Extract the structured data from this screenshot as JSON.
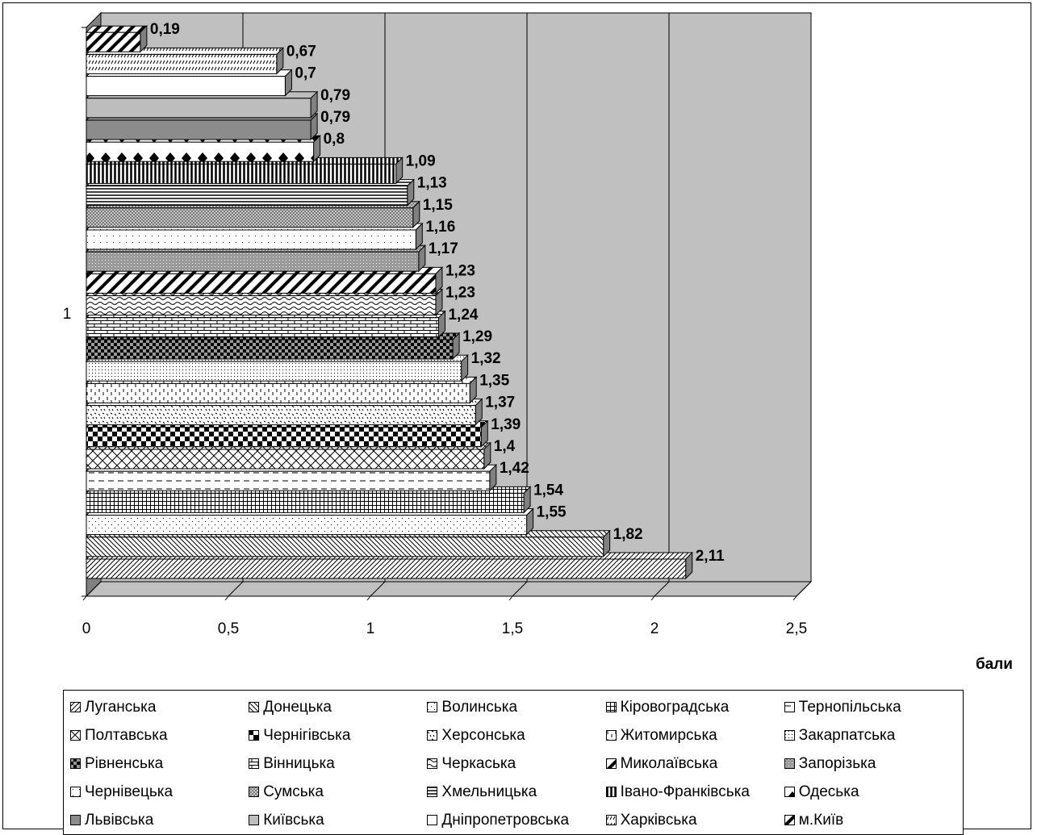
{
  "chart_data": {
    "type": "bar",
    "orientation": "horizontal",
    "category_label": "1",
    "xlabel": "бали",
    "xlim": [
      0,
      2.5
    ],
    "xticks": [
      "0",
      "0,5",
      "1",
      "1,5",
      "2",
      "2,5"
    ],
    "grid": true,
    "legend_position": "bottom",
    "series": [
      {
        "name": "Луганська",
        "value": 2.11,
        "label": "2,11",
        "pattern": "diag-fine"
      },
      {
        "name": "Донецька",
        "value": 1.82,
        "label": "1,82",
        "pattern": "diag-back"
      },
      {
        "name": "Волинська",
        "value": 1.55,
        "label": "1,55",
        "pattern": "dots-sparse"
      },
      {
        "name": "Кіровоградська",
        "value": 1.54,
        "label": "1,54",
        "pattern": "grid-fine"
      },
      {
        "name": "Тернопільська",
        "value": 1.42,
        "label": "1,42",
        "pattern": "dashes"
      },
      {
        "name": "Полтавська",
        "value": 1.4,
        "label": "1,4",
        "pattern": "cross-diag"
      },
      {
        "name": "Чернігівська",
        "value": 1.39,
        "label": "1,39",
        "pattern": "checker"
      },
      {
        "name": "Херсонська",
        "value": 1.37,
        "label": "1,37",
        "pattern": "confetti"
      },
      {
        "name": "Житомирська",
        "value": 1.35,
        "label": "1,35",
        "pattern": "vdash"
      },
      {
        "name": "Закарпатська",
        "value": 1.32,
        "label": "1,32",
        "pattern": "dots-dense"
      },
      {
        "name": "Рівненська",
        "value": 1.29,
        "label": "1,29",
        "pattern": "checker-dark"
      },
      {
        "name": "Вінницька",
        "value": 1.24,
        "label": "1,24",
        "pattern": "brick"
      },
      {
        "name": "Черкаська",
        "value": 1.23,
        "label": "1,23",
        "pattern": "wave"
      },
      {
        "name": "Миколаївська",
        "value": 1.23,
        "label": "1,23",
        "pattern": "diag-wide"
      },
      {
        "name": "Запорізька",
        "value": 1.17,
        "label": "1,17",
        "pattern": "gray-dots"
      },
      {
        "name": "Чернівецька",
        "value": 1.16,
        "label": "1,16",
        "pattern": "dots-light"
      },
      {
        "name": "Сумська",
        "value": 1.15,
        "label": "1,15",
        "pattern": "gray-checker"
      },
      {
        "name": "Хмельницька",
        "value": 1.13,
        "label": "1,13",
        "pattern": "hlines"
      },
      {
        "name": "Івано-Франківська",
        "value": 1.09,
        "label": "1,09",
        "pattern": "vlines"
      },
      {
        "name": "Одеська",
        "value": 0.8,
        "label": "0,8",
        "pattern": "diamonds"
      },
      {
        "name": "Львівська",
        "value": 0.79,
        "label": "0,79",
        "pattern": "solid-gray"
      },
      {
        "name": "Київська",
        "value": 0.79,
        "label": "0,79",
        "pattern": "solid-light"
      },
      {
        "name": "Дніпропетровська",
        "value": 0.7,
        "label": "0,7",
        "pattern": "white"
      },
      {
        "name": "Харківська",
        "value": 0.67,
        "label": "0,67",
        "pattern": "diag-small"
      },
      {
        "name": "м.Київ",
        "value": 0.19,
        "label": "0,19",
        "pattern": "diag-bold"
      }
    ]
  },
  "colors": {
    "plot_wall": "#c0c0c0",
    "plot_floor": "#c0c0c0",
    "gridline": "#000000",
    "bar_side": "#808080",
    "frame": "#000000"
  }
}
